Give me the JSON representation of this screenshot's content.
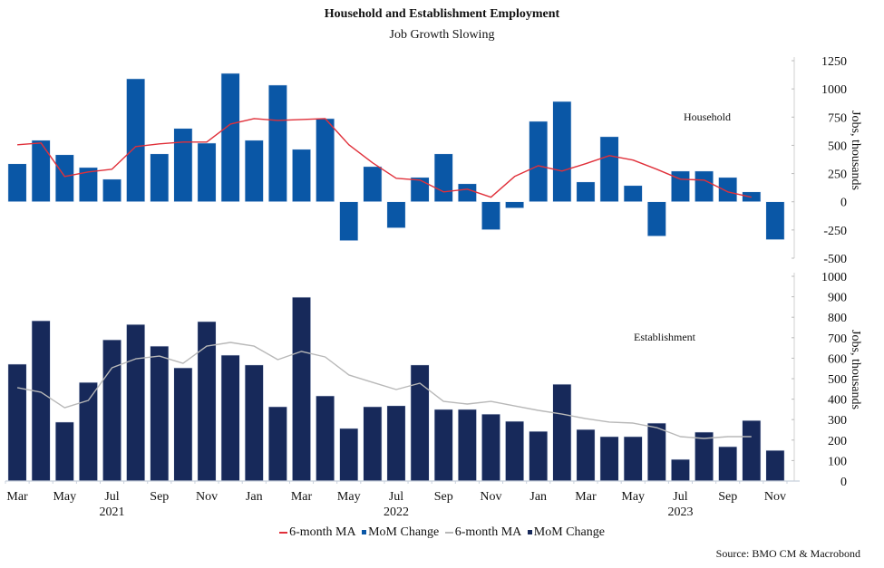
{
  "chart_data": {
    "type": "bar",
    "title": "Household and Establishment Employment",
    "subtitle": "Job Growth Slowing",
    "source": "Source: BMO CM & Macrobond",
    "x": [
      "Mar 2021",
      "Apr 2021",
      "May 2021",
      "Jun 2021",
      "Jul 2021",
      "Aug 2021",
      "Sep 2021",
      "Oct 2021",
      "Nov 2021",
      "Dec 2021",
      "Jan 2022",
      "Feb 2022",
      "Mar 2022",
      "Apr 2022",
      "May 2022",
      "Jun 2022",
      "Jul 2022",
      "Aug 2022",
      "Sep 2022",
      "Oct 2022",
      "Nov 2022",
      "Dec 2022",
      "Jan 2023",
      "Feb 2023",
      "Mar 2023",
      "Apr 2023",
      "May 2023",
      "Jun 2023",
      "Jul 2023",
      "Aug 2023",
      "Sep 2023",
      "Oct 2023",
      "Nov 2023"
    ],
    "x_tick_labels": [
      {
        "index": 0,
        "label": "Mar"
      },
      {
        "index": 2,
        "label": "May"
      },
      {
        "index": 4,
        "label": "Jul"
      },
      {
        "index": 6,
        "label": "Sep"
      },
      {
        "index": 8,
        "label": "Nov"
      },
      {
        "index": 10,
        "label": "Jan"
      },
      {
        "index": 12,
        "label": "Mar"
      },
      {
        "index": 14,
        "label": "May"
      },
      {
        "index": 16,
        "label": "Jul"
      },
      {
        "index": 18,
        "label": "Sep"
      },
      {
        "index": 20,
        "label": "Nov"
      },
      {
        "index": 22,
        "label": "Jan"
      },
      {
        "index": 24,
        "label": "Mar"
      },
      {
        "index": 26,
        "label": "May"
      },
      {
        "index": 28,
        "label": "Jul"
      },
      {
        "index": 30,
        "label": "Sep"
      },
      {
        "index": 32,
        "label": "Nov"
      }
    ],
    "year_labels": [
      {
        "index": 4,
        "label": "2021"
      },
      {
        "index": 16,
        "label": "2022"
      },
      {
        "index": 28,
        "label": "2023"
      }
    ],
    "legend": [
      {
        "label": "6-month MA",
        "kind": "line",
        "color": "#e0303a"
      },
      {
        "label": "MoM Change",
        "kind": "square",
        "color": "#0a57a6"
      },
      {
        "label": "6-month MA",
        "kind": "line",
        "color": "#b8b8b8"
      },
      {
        "label": "MoM Change",
        "kind": "square",
        "color": "#17295a"
      }
    ],
    "legend_placement": "bottom",
    "panels": [
      {
        "name": "Household",
        "ylabel": "Jobs, thousands",
        "ylim": [
          -500,
          1250
        ],
        "yticks": [
          -500,
          -250,
          0,
          250,
          500,
          750,
          1000,
          1250
        ],
        "grid": false,
        "series": [
          {
            "name": "MoM Change",
            "type": "bar",
            "color": "#0a57a6",
            "values": [
              337,
              545,
              417,
              304,
              200,
              1090,
              425,
              650,
              520,
              1138,
              545,
              1034,
              465,
              737,
              -345,
              312,
              -232,
              216,
              425,
              160,
              -248,
              -56,
              713,
              889,
              176,
              577,
              144,
              -305,
              272,
              272,
              216,
              88,
              -336
            ]
          },
          {
            "name": "6-month MA",
            "type": "line",
            "color": "#e0303a",
            "values": [
              505,
              521,
              224,
              264,
              288,
              489,
              513,
              529,
              529,
              689,
              737,
              721,
              729,
              737,
              505,
              345,
              208,
              192,
              88,
              112,
              40,
              224,
              320,
              272,
              337,
              409,
              369,
              288,
              200,
              192,
              88,
              40,
              null
            ]
          }
        ]
      },
      {
        "name": "Establishment",
        "ylabel": "Jobs, thousands",
        "ylim": [
          0,
          1000
        ],
        "yticks": [
          0,
          100,
          200,
          300,
          400,
          500,
          600,
          700,
          800,
          900,
          1000
        ],
        "grid": false,
        "series": [
          {
            "name": "MoM Change",
            "type": "bar",
            "color": "#17295a",
            "values": [
              571,
              783,
              288,
              482,
              690,
              765,
              659,
              553,
              779,
              615,
              567,
              363,
              898,
              416,
              257,
              363,
              368,
              567,
              350,
              350,
              327,
              292,
              243,
              473,
              252,
              217,
              217,
              283,
              106,
              239,
              168,
              296,
              150
            ]
          },
          {
            "name": "6-month MA",
            "type": "line",
            "color": "#b8b8b8",
            "values": [
              456,
              434,
              358,
              394,
              553,
              597,
              610,
              575,
              659,
              677,
              659,
              593,
              633,
              606,
              518,
              482,
              447,
              478,
              389,
              376,
              389,
              367,
              345,
              327,
              305,
              288,
              283,
              261,
              217,
              208,
              217,
              217,
              null
            ]
          }
        ]
      }
    ]
  }
}
